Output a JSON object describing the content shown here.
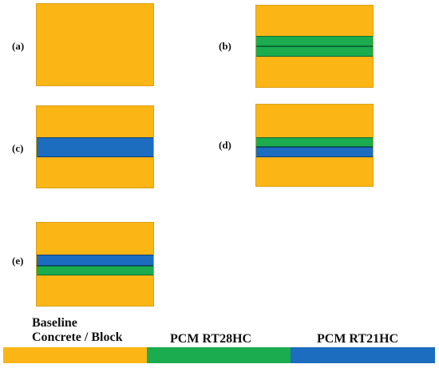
{
  "colors": {
    "concrete": "#fbb515",
    "rt28hc": "#1aac4e",
    "rt21hc": "#1c6cc0"
  },
  "panels": [
    {
      "label": "(a)",
      "layers": []
    },
    {
      "label": "(b)",
      "layers": [
        "rt28hc",
        "rt28hc"
      ]
    },
    {
      "label": "(c)",
      "layers": [
        "rt21hc"
      ]
    },
    {
      "label": "(d)",
      "layers": [
        "rt28hc",
        "rt21hc"
      ]
    },
    {
      "label": "(e)",
      "layers": [
        "rt21hc",
        "rt28hc"
      ]
    }
  ],
  "legend": {
    "baseline_line1": "Baseline",
    "baseline_line2": "Concrete / Block",
    "rt28hc": "PCM RT28HC",
    "rt21hc": "PCM RT21HC"
  }
}
